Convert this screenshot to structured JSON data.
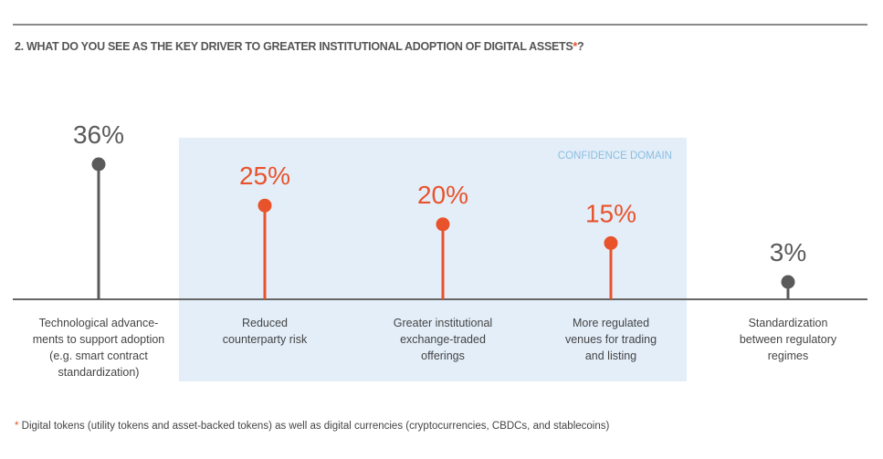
{
  "chart_data": {
    "type": "lollipop",
    "title": "2. WHAT DO YOU SEE AS THE KEY DRIVER TO GREATER INSTITUTIONAL ADOPTION OF DIGITAL ASSETS",
    "title_asterisk": "*",
    "title_suffix": "?",
    "categories": [
      "Technological advance-ments to support adoption (e.g. smart contract standardization)",
      "Reduced counterparty risk",
      "Greater institutional exchange-traded offerings",
      "More regulated venues for trading and listing",
      "Standardization between regulatory regimes"
    ],
    "category_lines": [
      [
        "Technological advance-",
        "ments to support adoption",
        "(e.g. smart contract",
        "standardization)"
      ],
      [
        "Reduced",
        "counterparty risk"
      ],
      [
        "Greater institutional",
        "exchange-traded",
        "offerings"
      ],
      [
        "More regulated",
        "venues for trading",
        "and listing"
      ],
      [
        "Standardization",
        "between regulatory",
        "regimes"
      ]
    ],
    "values": [
      36,
      25,
      20,
      15,
      3
    ],
    "value_labels": [
      "36%",
      "25%",
      "20%",
      "15%",
      "3%"
    ],
    "highlighted": [
      false,
      true,
      true,
      true,
      false
    ],
    "highlight_label": "CONFIDENCE DOMAIN",
    "colors": {
      "default": "#5a5a5a",
      "highlight": "#e8532b",
      "highlight_band": "#e3eef9",
      "band_label": "#8cbde0"
    },
    "ylim": [
      0,
      36
    ]
  },
  "footnote": {
    "asterisk": "*",
    "text": " Digital tokens (utility tokens and asset-backed tokens) as well as digital currencies (cryptocurrencies, CBDCs, and stablecoins)"
  }
}
